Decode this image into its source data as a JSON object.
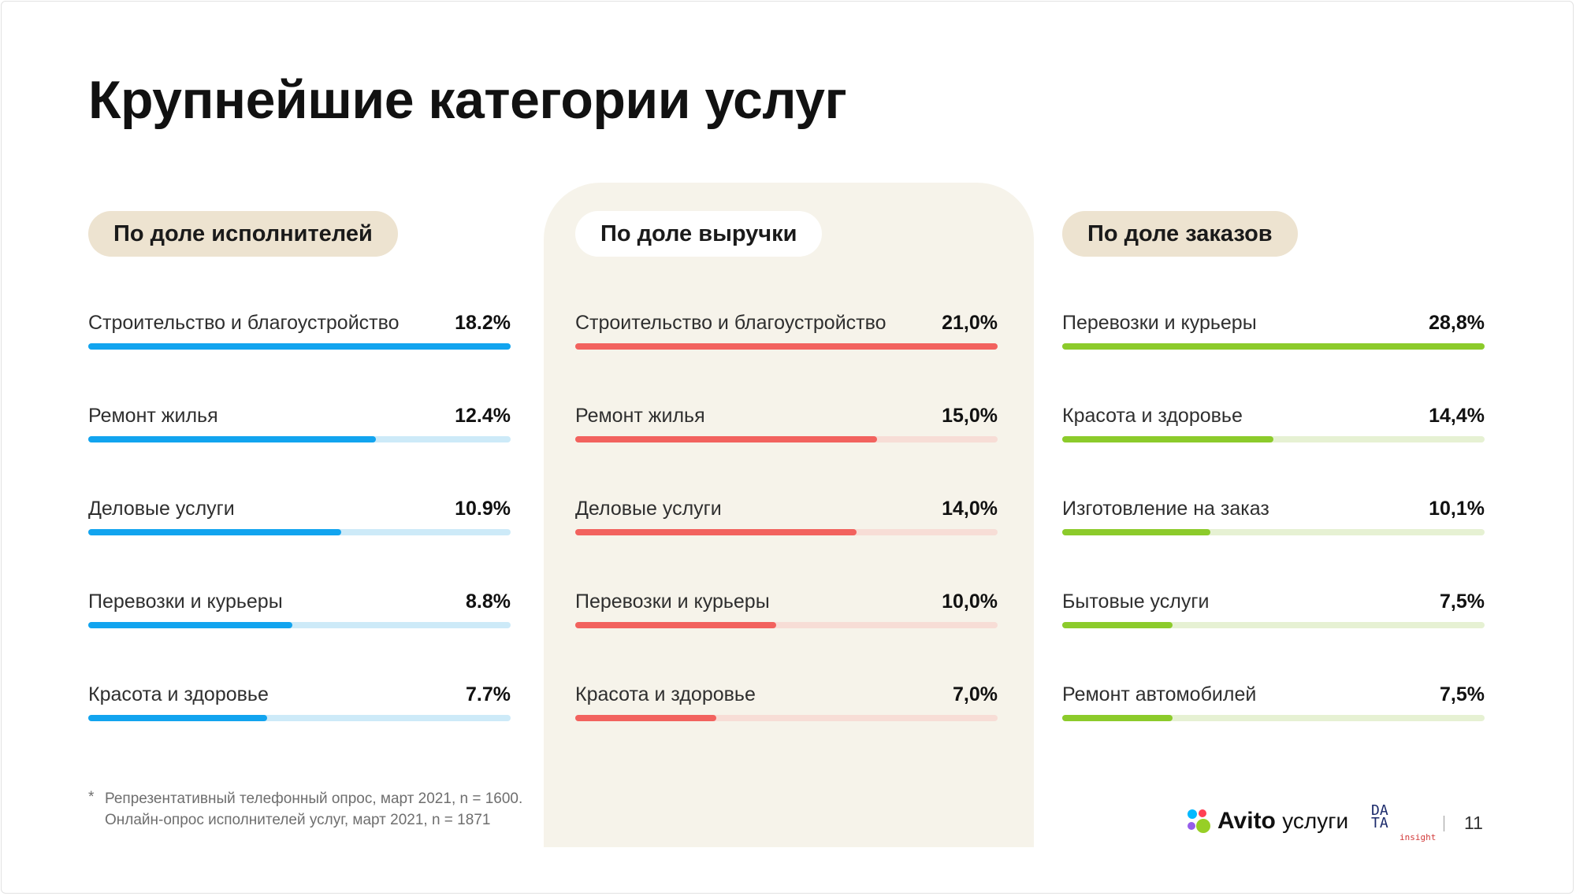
{
  "title": "Крупнейшие категории услуг",
  "colors": {
    "blue": "#12a4ef",
    "blue_track": "#cdeaf8",
    "red": "#f2625e",
    "red_track": "#f7ddd6",
    "green": "#8ccb2b",
    "green_track": "#e6f1d3"
  },
  "chart_data": [
    {
      "type": "bar",
      "title": "По доле исполнителей",
      "max": 18.2,
      "categories": [
        "Строительство и благоустройство",
        "Ремонт жилья",
        "Деловые услуги",
        "Перевозки и курьеры",
        "Красота и здоровье"
      ],
      "values": [
        18.2,
        12.4,
        10.9,
        8.8,
        7.7
      ],
      "labels": [
        "18.2%",
        "12.4%",
        "10.9%",
        "8.8%",
        "7.7%"
      ]
    },
    {
      "type": "bar",
      "title": "По доле выручки",
      "max": 21.0,
      "categories": [
        "Строительство и благоустройство",
        "Ремонт жилья",
        "Деловые услуги",
        "Перевозки и курьеры",
        "Красота и здоровье"
      ],
      "values": [
        21.0,
        15.0,
        14.0,
        10.0,
        7.0
      ],
      "labels": [
        "21,0%",
        "15,0%",
        "14,0%",
        "10,0%",
        "7,0%"
      ]
    },
    {
      "type": "bar",
      "title": "По доле заказов",
      "max": 28.8,
      "categories": [
        "Перевозки и курьеры",
        "Красота и здоровье",
        "Изготовление на заказ",
        "Бытовые услуги",
        "Ремонт автомобилей"
      ],
      "values": [
        28.8,
        14.4,
        10.1,
        7.5,
        7.5
      ],
      "labels": [
        "28,8%",
        "14,4%",
        "10,1%",
        "7,5%",
        "7,5%"
      ]
    }
  ],
  "footnote": {
    "star": "*",
    "line1": "Репрезентативный телефонный опрос, март 2021, n = 1600.",
    "line2": "Онлайн-опрос исполнителей услуг, март 2021, n = 1871"
  },
  "footer": {
    "avito": "Avito",
    "avito_sub": "услуги",
    "data_logo_top": "DA",
    "data_logo_bottom": "TA",
    "data_logo_sub": "insight",
    "page_number": "11"
  }
}
